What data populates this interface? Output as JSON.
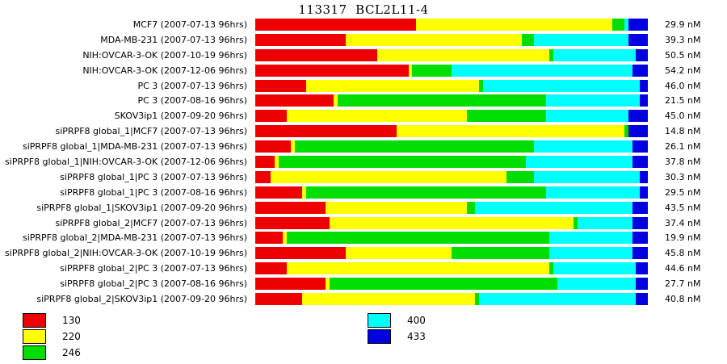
{
  "chart_data": {
    "type": "bar",
    "orientation": "horizontal",
    "stacked": true,
    "unit": "nM",
    "title": "113317  BCL2L11-4",
    "legend_position": "bottom-left-two-columns",
    "legend": [
      {
        "label": "130",
        "color": "#ee0000"
      },
      {
        "label": "220",
        "color": "#ffff00"
      },
      {
        "label": "246",
        "color": "#00dd00"
      },
      {
        "label": "400",
        "color": "#00ffff"
      },
      {
        "label": "433",
        "color": "#0000e0"
      }
    ],
    "rows": [
      {
        "label": "MCF7 (2007-07-13 96hrs)",
        "value": "29.9 nM",
        "segments": [
          41,
          50,
          3,
          1,
          5
        ]
      },
      {
        "label": "MDA-MB-231 (2007-07-13 96hrs)",
        "value": "39.3 nM",
        "segments": [
          23,
          45,
          3,
          24,
          5
        ]
      },
      {
        "label": "NIH:OVCAR-3-OK (2007-10-19 96hrs)",
        "value": "50.5 nM",
        "segments": [
          31,
          44,
          1,
          21,
          3
        ]
      },
      {
        "label": "NIH:OVCAR-3-OK (2007-12-06 96hrs)",
        "value": "54.2 nM",
        "segments": [
          39,
          1,
          10,
          46,
          4
        ]
      },
      {
        "label": "PC 3 (2007-07-13 96hrs)",
        "value": "46.0 nM",
        "segments": [
          13,
          44,
          1,
          40,
          2
        ]
      },
      {
        "label": "PC 3 (2007-08-16 96hrs)",
        "value": "21.5 nM",
        "segments": [
          20,
          1,
          53,
          24,
          2
        ]
      },
      {
        "label": "SKOV3ip1 (2007-09-20 96hrs)",
        "value": "45.0 nM",
        "segments": [
          8,
          46,
          20,
          21,
          5
        ]
      },
      {
        "label": "siPRPF8 global_1|MCF7 (2007-07-13 96hrs)",
        "value": "14.8 nM",
        "segments": [
          36,
          58,
          1,
          0,
          5
        ]
      },
      {
        "label": "siPRPF8 global_1|MDA-MB-231 (2007-07-13 96hrs)",
        "value": "26.1 nM",
        "segments": [
          9,
          1,
          61,
          25,
          4
        ]
      },
      {
        "label": "siPRPF8 global_1|NIH:OVCAR-3-OK (2007-12-06 96hrs)",
        "value": "37.8 nM",
        "segments": [
          5,
          1,
          63,
          27,
          4
        ]
      },
      {
        "label": "siPRPF8 global_1|PC 3 (2007-07-13 96hrs)",
        "value": "30.3 nM",
        "segments": [
          4,
          60,
          7,
          27,
          2
        ]
      },
      {
        "label": "siPRPF8 global_1|PC 3 (2007-08-16 96hrs)",
        "value": "29.5 nM",
        "segments": [
          12,
          1,
          61,
          24,
          2
        ]
      },
      {
        "label": "siPRPF8 global_1|SKOV3ip1 (2007-09-20 96hrs)",
        "value": "43.5 nM",
        "segments": [
          18,
          36,
          2,
          40,
          4
        ]
      },
      {
        "label": "siPRPF8 global_2|MCF7 (2007-07-13 96hrs)",
        "value": "37.4 nM",
        "segments": [
          19,
          62,
          1,
          14,
          4
        ]
      },
      {
        "label": "siPRPF8 global_2|MDA-MB-231 (2007-07-13 96hrs)",
        "value": "19.9 nM",
        "segments": [
          7,
          1,
          67,
          21,
          4
        ]
      },
      {
        "label": "siPRPF8 global_2|NIH:OVCAR-3-OK (2007-10-19 96hrs)",
        "value": "45.8 nM",
        "segments": [
          23,
          27,
          25,
          21,
          4
        ]
      },
      {
        "label": "siPRPF8 global_2|PC 3 (2007-07-13 96hrs)",
        "value": "44.6 nM",
        "segments": [
          8,
          67,
          1,
          21,
          3
        ]
      },
      {
        "label": "siPRPF8 global_2|PC 3 (2007-08-16 96hrs)",
        "value": "27.7 nM",
        "segments": [
          18,
          1,
          58,
          20,
          3
        ]
      },
      {
        "label": "siPRPF8 global_2|SKOV3ip1 (2007-09-20 96hrs)",
        "value": "40.8 nM",
        "segments": [
          12,
          44,
          1,
          40,
          3
        ]
      }
    ]
  }
}
